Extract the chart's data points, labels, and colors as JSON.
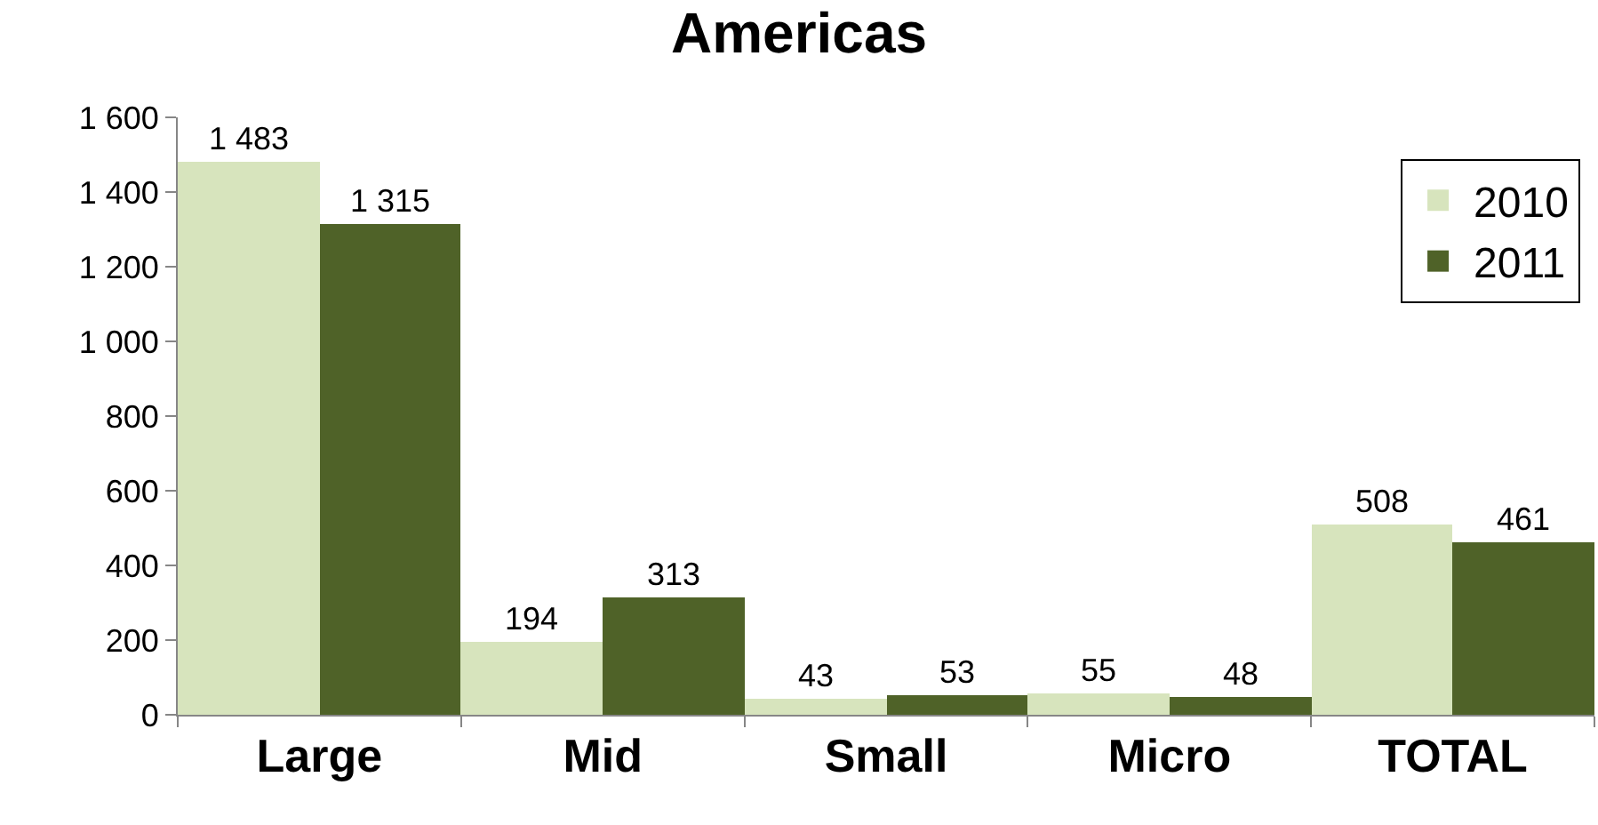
{
  "chart_data": {
    "type": "bar",
    "title": "Americas",
    "categories": [
      "Large",
      "Mid",
      "Small",
      "Micro",
      "TOTAL"
    ],
    "series": [
      {
        "name": "2010",
        "color": "#d7e4bd",
        "values": [
          1483,
          194,
          43,
          55,
          508
        ],
        "value_labels": [
          "1 483",
          "194",
          "43",
          "55",
          "508"
        ]
      },
      {
        "name": "2011",
        "color": "#4f6228",
        "values": [
          1315,
          313,
          53,
          48,
          461
        ],
        "value_labels": [
          "1 315",
          "313",
          "53",
          "48",
          "461"
        ]
      }
    ],
    "ylim": [
      0,
      1600
    ],
    "yticks": [
      0,
      200,
      400,
      600,
      800,
      {
        "value": 1000,
        "label": "1 000"
      },
      {
        "value": 1200,
        "label": "1 200"
      },
      {
        "value": 1400,
        "label": "1 400"
      },
      {
        "value": 1600,
        "label": "1 600"
      }
    ],
    "legend": "top right"
  }
}
